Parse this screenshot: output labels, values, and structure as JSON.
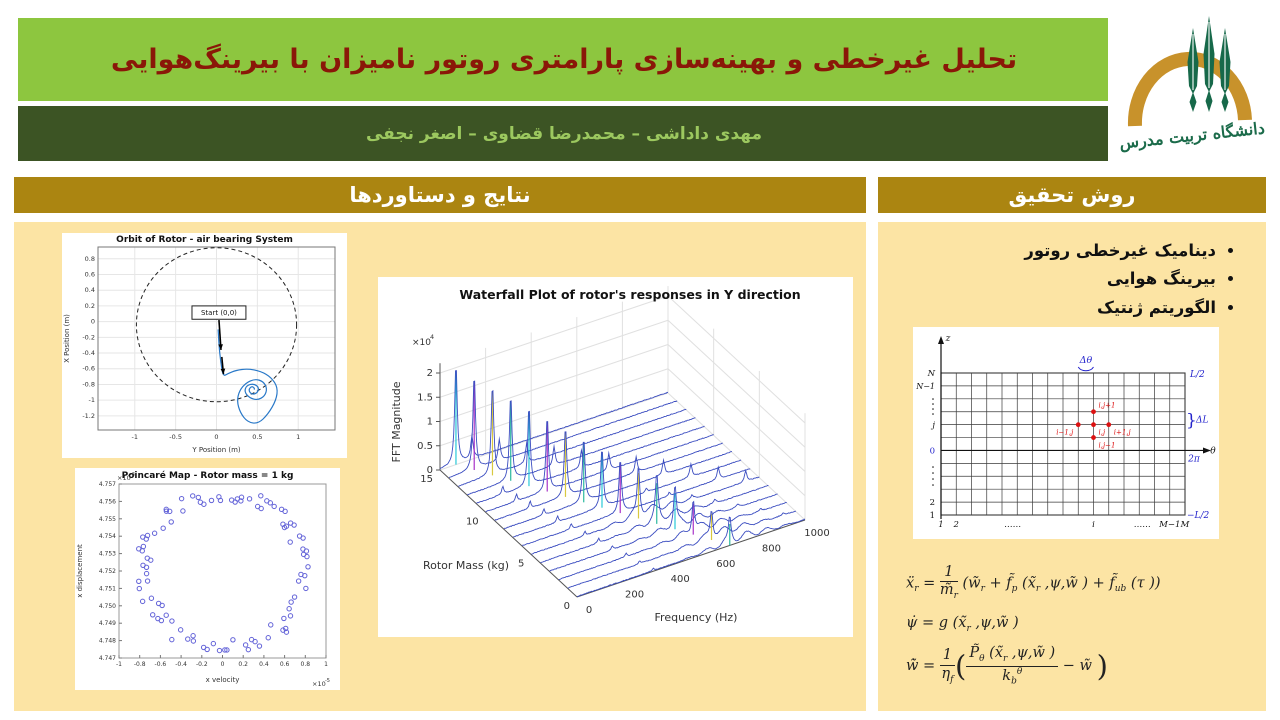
{
  "theme": {
    "green": "#8dc63f",
    "dark_green": "#3c5424",
    "title_red": "#8a1708",
    "author_green": "#9cc85f",
    "gold": "#ab8511",
    "cream": "#fce4a4",
    "white": "#ffffff"
  },
  "header": {
    "title": "تحلیل غیرخطی و بهینه‌سازی پارامتری روتور نامیزان با بیرینگ‌هوایی",
    "authors": "مهدی داداشی – محمدرضا قضاوی – اصغر نجفی"
  },
  "logo": {
    "university_name": "دانشگاه تربیت مدرس",
    "arch_color": "#c8922b",
    "tree_color": "#17694a"
  },
  "sections": {
    "results_title": "نتایج و دستاوردها",
    "method_title": "روش تحقیق"
  },
  "method": {
    "bullets": [
      "دینامیک غیرخطی روتور",
      "بیرینگ هوایی",
      "الگوریتم ژنتیک"
    ],
    "diagram": {
      "z_label": "z",
      "theta_label": "θ",
      "two_pi": "2π",
      "delta_theta": "Δθ",
      "right_top": "L/2",
      "right_bottom": "−L/2",
      "delta_L": "ΔL",
      "brace": "}",
      "left_labels": {
        "top": "N",
        "second": "N−1",
        "j": "j",
        "zero": "0",
        "two": "2",
        "one": "1"
      },
      "bottom_labels": [
        "1",
        "2",
        "……",
        "i",
        "……",
        "M−1",
        "M"
      ],
      "stencil": {
        "center": "i,j",
        "up": "i,j+1",
        "down": "i,j−1",
        "left": "i−1,j",
        "right": "i+1,j"
      },
      "grid": {
        "cols": 16,
        "rows": 11,
        "axis_row_from_bottom": 5,
        "j_row_from_bottom": 7,
        "stencil_col": 10
      },
      "grid_color": "#3a3a3a",
      "blue_label_color": "#2323cc",
      "stencil_color": "#dd1111"
    },
    "equations": [
      [
        {
          "t": "ẍ"
        },
        {
          "sub": "r"
        },
        {
          "t": " = "
        },
        {
          "frac": {
            "num": [
              {
                "t": "1"
              }
            ],
            "den": [
              {
                "t": "m̃"
              },
              {
                "sub": "r"
              }
            ]
          }
        },
        {
          "t": " (w̃"
        },
        {
          "sub": "r"
        },
        {
          "t": " + f̃"
        },
        {
          "sub": "p"
        },
        {
          "t": " (x̃"
        },
        {
          "sub": "r"
        },
        {
          "t": " ,ψ,w̃ ) + f̃"
        },
        {
          "sub": "ub"
        },
        {
          "t": " (τ ))"
        }
      ],
      [
        {
          "t": "ψ̇ = g (x̃"
        },
        {
          "sub": "r"
        },
        {
          "t": " ,ψ,w̃ )"
        }
      ],
      [
        {
          "t": "w̃̇ = "
        },
        {
          "frac": {
            "num": [
              {
                "t": "1"
              }
            ],
            "den": [
              {
                "t": "η"
              },
              {
                "sub": "f"
              }
            ]
          }
        },
        {
          "big": "("
        },
        {
          "frac": {
            "num": [
              {
                "t": "P̃"
              },
              {
                "sub": "θ"
              },
              {
                "t": " (x̃"
              },
              {
                "sub": "r"
              },
              {
                "t": " ,ψ,w̃ )"
              }
            ],
            "den": [
              {
                "t": "k"
              },
              {
                "sub": "b"
              },
              {
                "sup": "θ"
              }
            ]
          }
        },
        {
          "t": " − w̃ "
        },
        {
          "big": ")"
        }
      ]
    ]
  },
  "chart_data": [
    {
      "name": "orbit",
      "type": "line",
      "title": "Orbit of Rotor - air bearing System",
      "xlabel": "Y Position (m)",
      "ylabel": "X Position (m)",
      "xlim": [
        -1.45,
        1.45
      ],
      "ylim": [
        -1.38,
        0.95
      ],
      "xticks": [
        -1,
        -0.5,
        0,
        0.5,
        1
      ],
      "yticks": [
        0.8,
        0.6,
        0.4,
        0.2,
        0,
        -0.2,
        -0.4,
        -0.6,
        -0.8,
        -1,
        -1.2
      ],
      "grid": true,
      "clearance_circle": {
        "cx": 0,
        "cy": -0.04,
        "r": 0.98,
        "style": "dashed",
        "color": "#222222"
      },
      "annotation": {
        "label": "Start (0,0)",
        "box_x": [
          -0.3,
          0.36
        ],
        "box_y": [
          0.03,
          0.2
        ]
      },
      "arrows": [
        [
          [
            0.03,
            0.02
          ],
          [
            0.055,
            -0.36
          ]
        ],
        [
          [
            0.065,
            -0.45
          ],
          [
            0.085,
            -0.67
          ]
        ]
      ],
      "line_color": "#2878c8",
      "trajectory": [
        [
          0.02,
          -0.1
        ],
        [
          0.03,
          -0.3
        ],
        [
          0.05,
          -0.5
        ],
        [
          0.08,
          -0.7
        ],
        [
          0.14,
          -0.66
        ],
        [
          0.24,
          -0.62
        ],
        [
          0.38,
          -0.6
        ],
        [
          0.54,
          -0.63
        ],
        [
          0.67,
          -0.71
        ],
        [
          0.75,
          -0.84
        ],
        [
          0.73,
          -1.0
        ],
        [
          0.63,
          -1.18
        ],
        [
          0.51,
          -1.3
        ],
        [
          0.38,
          -1.28
        ],
        [
          0.29,
          -1.16
        ],
        [
          0.25,
          -1.01
        ],
        [
          0.28,
          -0.88
        ],
        [
          0.36,
          -0.78
        ],
        [
          0.47,
          -0.73
        ],
        [
          0.57,
          -0.76
        ],
        [
          0.62,
          -0.85
        ],
        [
          0.59,
          -0.95
        ],
        [
          0.5,
          -1.0
        ],
        [
          0.4,
          -0.97
        ],
        [
          0.34,
          -0.89
        ],
        [
          0.37,
          -0.81
        ],
        [
          0.46,
          -0.79
        ],
        [
          0.52,
          -0.84
        ],
        [
          0.5,
          -0.91
        ],
        [
          0.43,
          -0.93
        ],
        [
          0.39,
          -0.87
        ],
        [
          0.43,
          -0.82
        ],
        [
          0.47,
          -0.85
        ],
        [
          0.45,
          -0.88
        ]
      ]
    },
    {
      "name": "waterfall",
      "type": "line3d-waterfall",
      "title": "Waterfall Plot of rotor's responses in Y direction",
      "xlabel": "Frequency (Hz)",
      "ylabel": "Rotor Mass (kg)",
      "zlabel": "FFT Magnitude",
      "z_multiplier": "×10",
      "z_multiplier_exp": "4",
      "freq_ticks": [
        0,
        200,
        400,
        600,
        800,
        1000
      ],
      "mass_ticks": [
        0,
        5,
        10,
        15
      ],
      "z_ticks": [
        0,
        0.5,
        1,
        1.5,
        2
      ],
      "masses_count": 16,
      "peak_rule": {
        "f0": 70,
        "df_per_step": 40,
        "h_max": 21000,
        "h_drop_per_step": 1080,
        "z_cap": 21800
      },
      "trace_color": "#3a4cc0",
      "accent_colors": [
        "#28c8d8",
        "#a832c8",
        "#d8c840",
        "#2ab89e"
      ]
    },
    {
      "name": "poincare",
      "type": "scatter",
      "title": "Poincaré Map - Rotor mass = 1 kg",
      "xlabel": "x velocity",
      "ylabel": "x displacement",
      "x_multiplier": "×10",
      "x_multiplier_exp": "-5",
      "y_multiplier": "×10",
      "y_multiplier_exp": "-3",
      "xlim": [
        -1,
        1
      ],
      "ylim": [
        4.747,
        4.757
      ],
      "xticks": [
        -1,
        -0.8,
        -0.6,
        -0.4,
        -0.2,
        0,
        0.2,
        0.4,
        0.6,
        0.8,
        1
      ],
      "yticks": [
        4.747,
        4.748,
        4.749,
        4.75,
        4.751,
        4.752,
        4.753,
        4.754,
        4.755,
        4.756,
        4.757
      ],
      "ring": {
        "cx": 0,
        "cy": 4.752,
        "rx": 0.78,
        "ry": 0.0044,
        "points": 76,
        "radius_jitter": 0.22,
        "angle_jitter": 0.12,
        "seed": 7
      },
      "marker_color": "#6363d8"
    }
  ]
}
